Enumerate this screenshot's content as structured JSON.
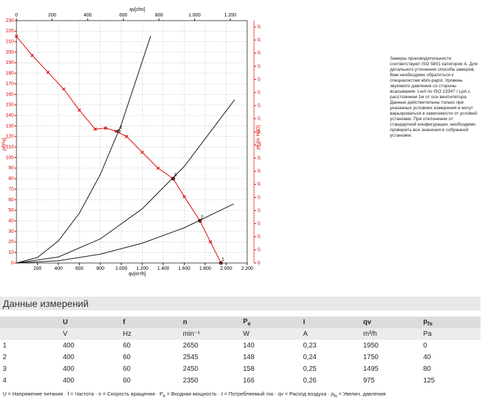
{
  "chart_data": {
    "type": "line",
    "xlabel": "qv[m³/h]",
    "x2label": "qv[cfm]",
    "ylabel": "pf[Pa]",
    "y2label": "pf_[in H2O]",
    "xlim": [
      0,
      2200
    ],
    "xticks": [
      {
        "value": 200,
        "label": "200"
      },
      {
        "value": 400,
        "label": "400"
      },
      {
        "value": 600,
        "label": "600"
      },
      {
        "value": 800,
        "label": "800"
      },
      {
        "value": 1000,
        "label": "1.000"
      },
      {
        "value": 1200,
        "label": "1.200"
      },
      {
        "value": 1400,
        "label": "1.400"
      },
      {
        "value": 1600,
        "label": "1.600"
      },
      {
        "value": 1800,
        "label": "1.800"
      },
      {
        "value": 2000,
        "label": "2.000"
      },
      {
        "value": 2200,
        "label": "2.200"
      }
    ],
    "x2lim": [
      0,
      1295
    ],
    "x2ticks": [
      0,
      200,
      400,
      600,
      800,
      {
        "value": 1000,
        "label": "1.000"
      },
      {
        "value": 1200,
        "label": "1.200"
      }
    ],
    "ylim": [
      0,
      230
    ],
    "yticks": [
      0,
      10,
      20,
      30,
      40,
      50,
      60,
      70,
      80,
      90,
      100,
      110,
      120,
      130,
      140,
      150,
      160,
      170,
      180,
      190,
      200,
      210,
      220,
      230
    ],
    "y2lim": [
      0,
      0.924
    ],
    "y2ticks": [
      {
        "value": 0,
        "label": "0"
      },
      {
        "value": 0.05,
        "label": "0,05"
      },
      {
        "value": 0.1,
        "label": "0,1"
      },
      {
        "value": 0.15,
        "label": "0,15"
      },
      {
        "value": 0.2,
        "label": "0,2"
      },
      {
        "value": 0.25,
        "label": "0,25"
      },
      {
        "value": 0.3,
        "label": "0,3"
      },
      {
        "value": 0.35,
        "label": "0,35"
      },
      {
        "value": 0.4,
        "label": "0,4"
      },
      {
        "value": 0.45,
        "label": "0,45"
      },
      {
        "value": 0.5,
        "label": "0,5"
      },
      {
        "value": 0.55,
        "label": "0,55"
      },
      {
        "value": 0.6,
        "label": "0,6"
      },
      {
        "value": 0.65,
        "label": "0,65"
      },
      {
        "value": 0.7,
        "label": "0,7"
      },
      {
        "value": 0.75,
        "label": "0,75"
      },
      {
        "value": 0.8,
        "label": "0,8"
      },
      {
        "value": 0.85,
        "label": "0,85"
      },
      {
        "value": 0.9,
        "label": "0,9"
      }
    ],
    "grid": true,
    "series": [
      {
        "color": "#e00000",
        "markers": true,
        "x": [
          0,
          150,
          300,
          450,
          600,
          750,
          850,
          950,
          1050,
          1200,
          1350,
          1495,
          1600,
          1750,
          1850,
          1950
        ],
        "values": [
          215,
          197,
          181,
          165,
          145,
          127,
          128,
          125,
          120,
          105,
          90,
          80,
          63,
          40,
          20,
          0
        ]
      },
      {
        "color": "#111111",
        "markers": false,
        "x": [
          0,
          200,
          400,
          600,
          800,
          1000,
          1280
        ],
        "values": [
          0,
          5.3,
          21,
          47.3,
          84.1,
          131.5,
          215.4
        ]
      },
      {
        "color": "#111111",
        "markers": false,
        "x": [
          0,
          400,
          800,
          1200,
          1600,
          2080
        ],
        "values": [
          0,
          5.7,
          22.9,
          51.5,
          91.6,
          154.9
        ]
      },
      {
        "color": "#111111",
        "markers": false,
        "x": [
          0,
          400,
          800,
          1200,
          1600,
          2070
        ],
        "values": [
          0,
          2.1,
          8.4,
          18.8,
          33.4,
          56
        ]
      }
    ],
    "annotations": [
      {
        "text": "1",
        "x": 1950,
        "y": 0
      },
      {
        "text": "2",
        "x": 1750,
        "y": 40
      },
      {
        "text": "3",
        "x": 1495,
        "y": 80
      },
      {
        "text": "4",
        "x": 975,
        "y": 125
      }
    ]
  },
  "note": "Замеры производительности соответствуют ISO 5801 категория A. Для детального уточнения способа замеров, Вам необходимо обратиться к специалистам ebm-papst. Уровень звукового давления со стороны всасывания: LwA по ISO 13347 / LpA с расстоянием 1м от оси вентилятора Данные действительны только при указанных условиях измерения и могут варьироваться в зависимости от условий установки. При отклонении от стандартной конфигурации, необходимо проверить все значения в собранной установке.",
  "table": {
    "title": "Данные измерений",
    "header": [
      "U",
      "f",
      "n",
      [
        "P",
        "e"
      ],
      "I",
      "qv",
      [
        "p",
        "fs"
      ]
    ],
    "units": [
      "V",
      "Hz",
      "min⁻¹",
      "W",
      "A",
      "m³/h",
      "Pa"
    ],
    "rows": [
      [
        "1",
        "400",
        "60",
        "2650",
        "140",
        "0,23",
        "1950",
        "0"
      ],
      [
        "2",
        "400",
        "60",
        "2545",
        "148",
        "0,24",
        "1750",
        "40"
      ],
      [
        "3",
        "400",
        "60",
        "2450",
        "158",
        "0,25",
        "1495",
        "80"
      ],
      [
        "4",
        "400",
        "60",
        "2350",
        "166",
        "0,26",
        "975",
        "125"
      ]
    ],
    "footnote": [
      {
        "t": "U = Напряжение питания · f = Частота · n = Скорость вращения · P"
      },
      {
        "sub": "e"
      },
      {
        "t": " = Входная мощность · I = Потребляемый ток · qv = Расход воздуха · p"
      },
      {
        "sub": "fs"
      },
      {
        "t": " = Увелич. давления"
      }
    ]
  }
}
